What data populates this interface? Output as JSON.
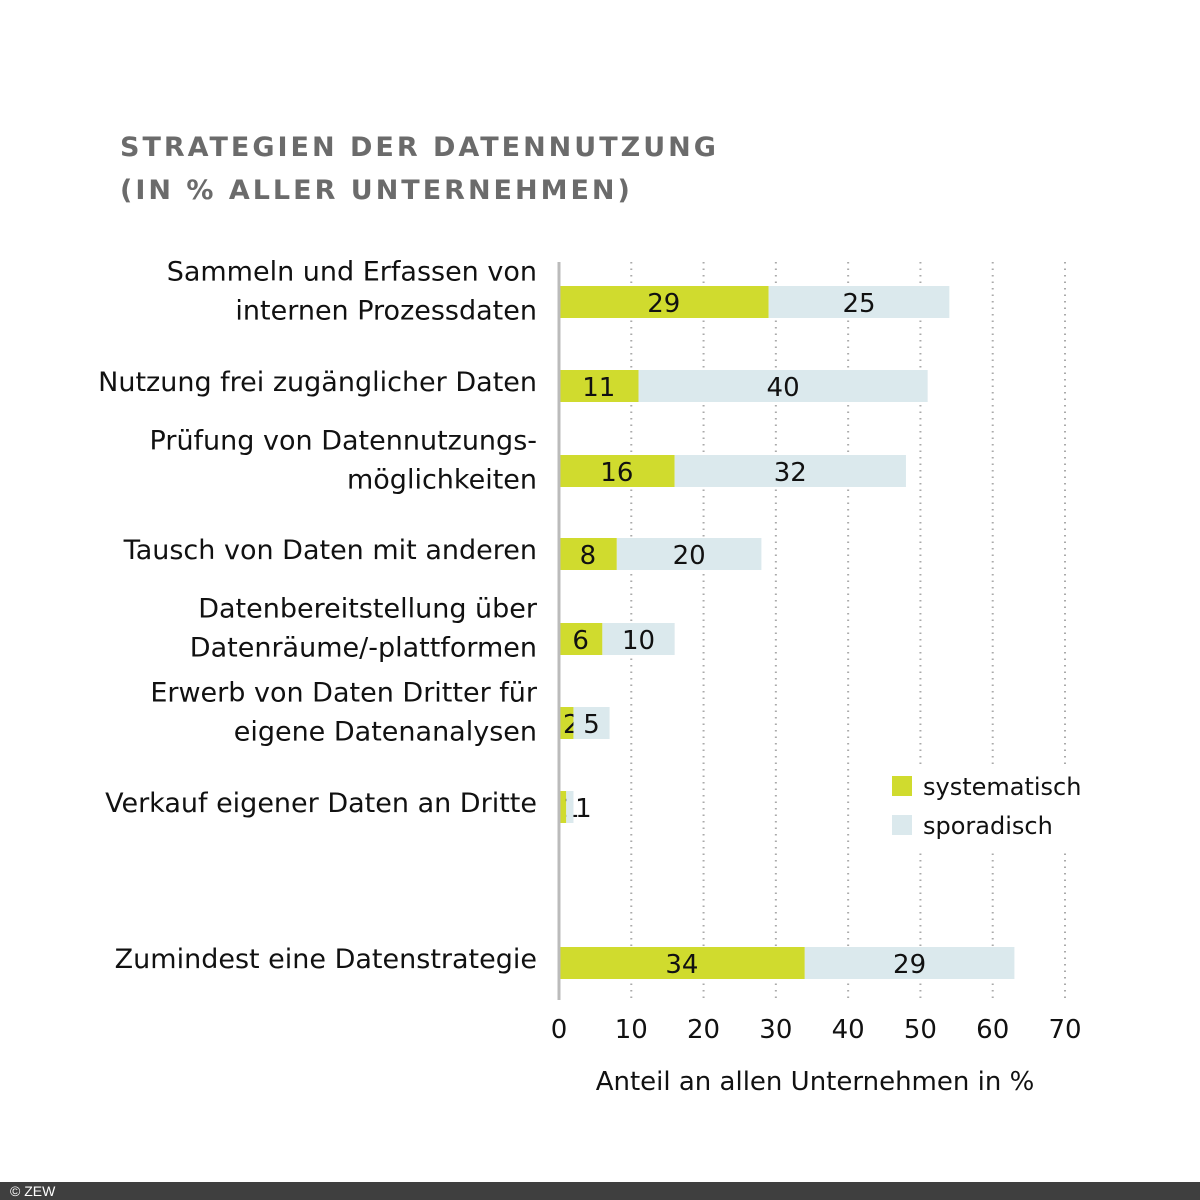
{
  "chart_data": {
    "type": "bar",
    "orientation": "horizontal",
    "stacked": true,
    "title": "STRATEGIEN DER DATENNUTZUNG",
    "subtitle": "(IN % ALLER UNTERNEHMEN)",
    "categories": [
      [
        "Sammeln und Erfassen von",
        "internen Prozessdaten"
      ],
      [
        "Nutzung frei zugänglicher Daten"
      ],
      [
        "Prüfung von Datennutzungs-",
        "möglichkeiten"
      ],
      [
        "Tausch von Daten mit anderen"
      ],
      [
        "Datenbereitstellung über",
        "Datenräume/-plattformen"
      ],
      [
        "Erwerb von Daten Dritter für",
        "eigene Datenanalysen"
      ],
      [
        "Verkauf eigener Daten an Dritte"
      ],
      [
        "Zumindest eine Datenstrategie"
      ]
    ],
    "series": [
      {
        "name": "systematisch",
        "color": "#d0db2e",
        "values": [
          29,
          11,
          16,
          8,
          6,
          2,
          1,
          34
        ]
      },
      {
        "name": "sporadisch",
        "color": "#dbe9ed",
        "values": [
          25,
          40,
          32,
          20,
          10,
          5,
          1,
          29
        ]
      }
    ],
    "xlabel": "Anteil an allen Unternehmen in %",
    "xlim": [
      0,
      70
    ],
    "xticks": [
      0,
      10,
      20,
      30,
      40,
      50,
      60,
      70
    ],
    "grid": "vertical dotted",
    "legend": "bottom-right"
  },
  "footer": "© ZEW"
}
